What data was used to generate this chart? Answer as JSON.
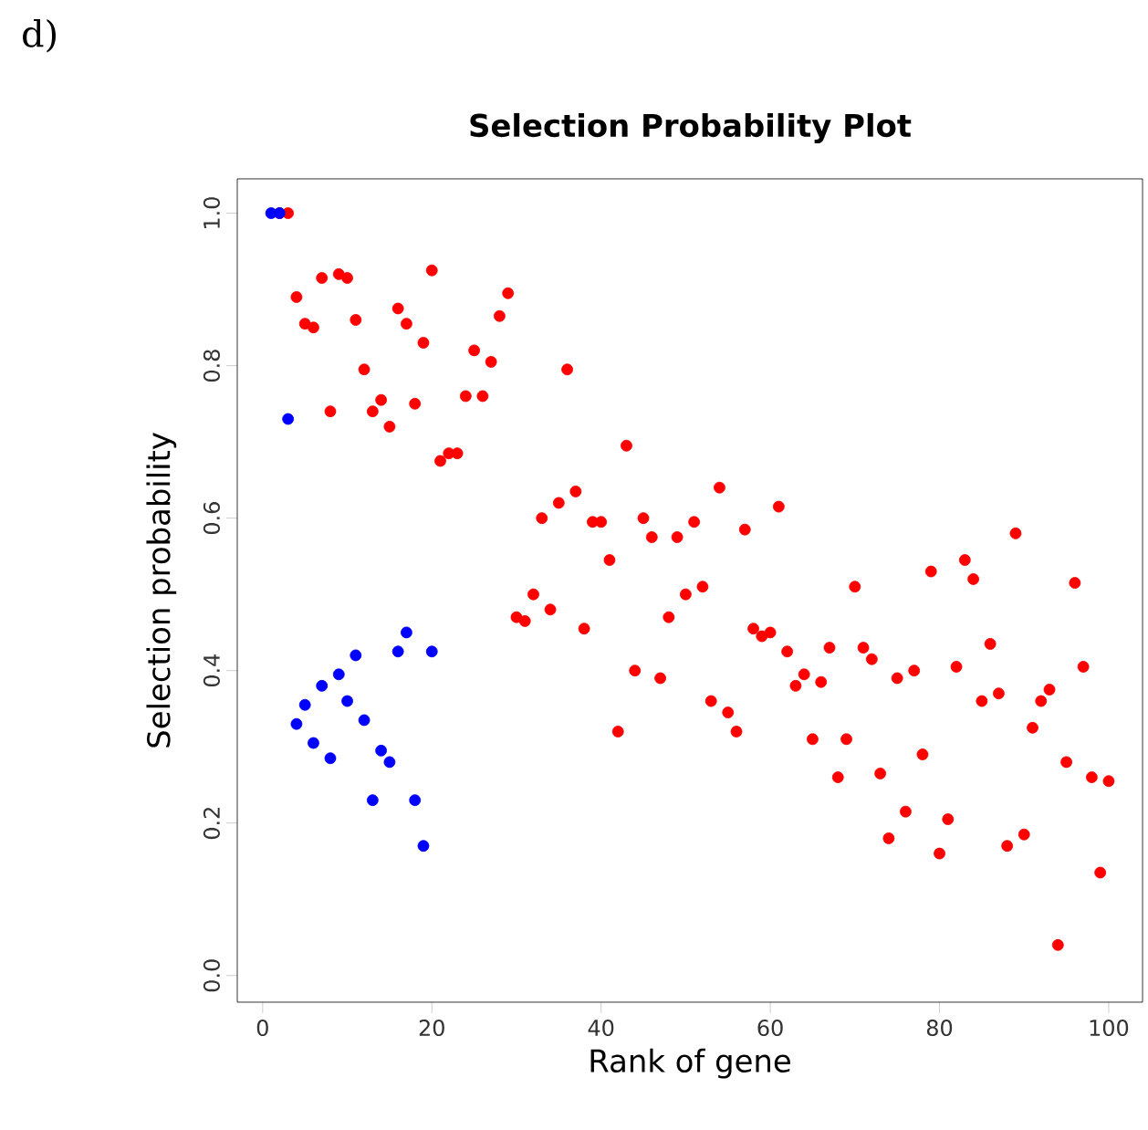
{
  "chart_data": {
    "type": "scatter",
    "title": "Selection Probability Plot",
    "xlabel": "Rank of gene",
    "ylabel": "Selection probability",
    "annotations": [
      "d)"
    ],
    "xlim": [
      -3,
      104
    ],
    "ylim": [
      -0.035,
      1.045
    ],
    "xticks": [
      0,
      20,
      40,
      60,
      80,
      100
    ],
    "yticks": [
      {
        "value": 0,
        "label": "0.0"
      },
      {
        "value": 0.2,
        "label": "0.2"
      },
      {
        "value": 0.4,
        "label": "0.4"
      },
      {
        "value": 0.6,
        "label": "0.6"
      },
      {
        "value": 0.8,
        "label": "0.8"
      },
      {
        "value": 1,
        "label": "1.0"
      }
    ],
    "marker": "circle",
    "series": [
      {
        "color": "#ff0000",
        "x": [
          2,
          3,
          4,
          5,
          6,
          7,
          8,
          9,
          10,
          11,
          12,
          13,
          14,
          15,
          16,
          17,
          18,
          19,
          20,
          21,
          22,
          23,
          24,
          25,
          26,
          27,
          28,
          29,
          30,
          31,
          32,
          33,
          34,
          35,
          36,
          37,
          38,
          39,
          40,
          41,
          42,
          43,
          44,
          45,
          46,
          47,
          48,
          49,
          50,
          51,
          52,
          53,
          54,
          55,
          56,
          57,
          58,
          59,
          60,
          61,
          62,
          63,
          64,
          65,
          66,
          67,
          68,
          69,
          70,
          71,
          72,
          73,
          74,
          75,
          76,
          77,
          78,
          79,
          80,
          81,
          82,
          83,
          84,
          85,
          86,
          87,
          88,
          89,
          90,
          91,
          92,
          93,
          94,
          95,
          96,
          97,
          98,
          99,
          100
        ],
        "values": [
          1.0,
          1.0,
          0.89,
          0.855,
          0.85,
          0.915,
          0.74,
          0.92,
          0.915,
          0.86,
          0.795,
          0.74,
          0.755,
          0.72,
          0.875,
          0.855,
          0.75,
          0.83,
          0.925,
          0.675,
          0.685,
          0.685,
          0.76,
          0.82,
          0.76,
          0.805,
          0.865,
          0.895,
          0.47,
          0.465,
          0.5,
          0.6,
          0.48,
          0.62,
          0.795,
          0.635,
          0.455,
          0.595,
          0.595,
          0.545,
          0.32,
          0.695,
          0.4,
          0.6,
          0.575,
          0.39,
          0.47,
          0.575,
          0.5,
          0.595,
          0.51,
          0.36,
          0.64,
          0.345,
          0.32,
          0.585,
          0.455,
          0.445,
          0.45,
          0.615,
          0.425,
          0.38,
          0.395,
          0.31,
          0.385,
          0.43,
          0.26,
          0.31,
          0.51,
          0.43,
          0.415,
          0.265,
          0.18,
          0.39,
          0.215,
          0.4,
          0.29,
          0.53,
          0.16,
          0.205,
          0.405,
          0.545,
          0.52,
          0.36,
          0.435,
          0.37,
          0.17,
          0.58,
          0.185,
          0.325,
          0.36,
          0.375,
          0.04,
          0.28,
          0.515,
          0.405,
          0.26,
          0.135,
          0.255
        ]
      },
      {
        "color": "#0000ff",
        "x": [
          1,
          2,
          3,
          4,
          5,
          6,
          7,
          8,
          9,
          10,
          11,
          12,
          13,
          14,
          15,
          16,
          17,
          18,
          19,
          20
        ],
        "values": [
          1.0,
          1.0,
          0.73,
          0.33,
          0.355,
          0.305,
          0.38,
          0.285,
          0.395,
          0.36,
          0.42,
          0.335,
          0.23,
          0.295,
          0.28,
          0.425,
          0.45,
          0.23,
          0.17,
          0.425
        ]
      }
    ]
  }
}
